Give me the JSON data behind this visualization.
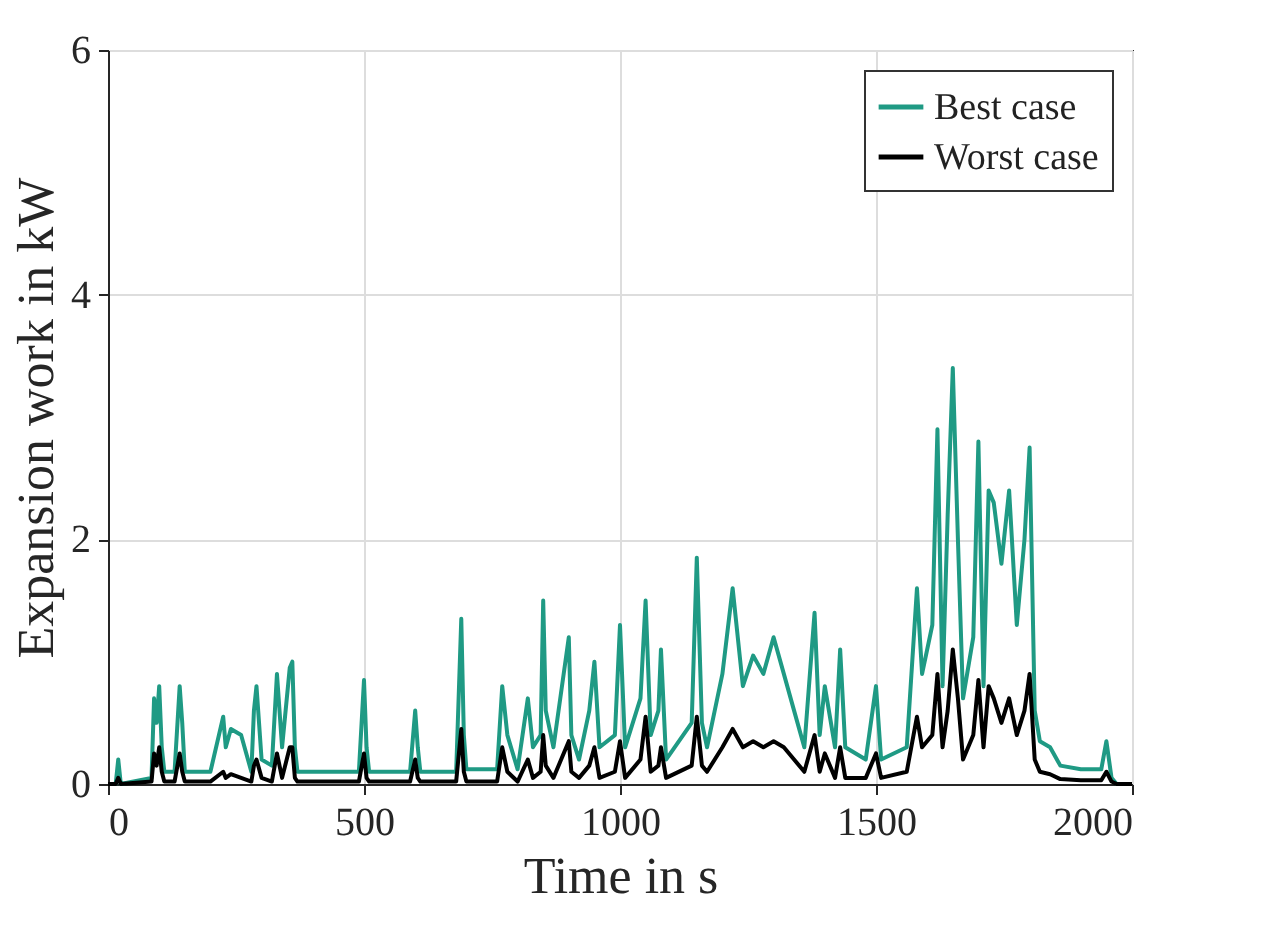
{
  "chart_data": {
    "type": "line",
    "xlabel": "Time in s",
    "ylabel": "Expansion work in kW",
    "x": [
      0,
      15,
      20,
      25,
      85,
      90,
      95,
      100,
      105,
      110,
      130,
      140,
      145,
      150,
      200,
      225,
      230,
      240,
      260,
      280,
      285,
      290,
      300,
      320,
      330,
      340,
      355,
      360,
      365,
      370,
      380,
      490,
      500,
      505,
      510,
      590,
      600,
      605,
      610,
      680,
      690,
      695,
      700,
      760,
      770,
      780,
      800,
      820,
      830,
      845,
      850,
      855,
      870,
      900,
      905,
      920,
      940,
      950,
      960,
      990,
      1000,
      1010,
      1040,
      1050,
      1060,
      1075,
      1080,
      1090,
      1140,
      1150,
      1160,
      1170,
      1200,
      1220,
      1240,
      1260,
      1280,
      1300,
      1320,
      1340,
      1360,
      1380,
      1390,
      1400,
      1420,
      1430,
      1440,
      1480,
      1500,
      1510,
      1560,
      1580,
      1590,
      1610,
      1620,
      1630,
      1640,
      1650,
      1660,
      1670,
      1690,
      1700,
      1710,
      1720,
      1730,
      1745,
      1760,
      1775,
      1790,
      1800,
      1810,
      1820,
      1840,
      1860,
      1900,
      1940,
      1950,
      1960,
      1970,
      2000
    ],
    "series": [
      {
        "name": "Best case",
        "color": "#1f9a84",
        "values": [
          0,
          0,
          0.2,
          0,
          0.05,
          0.7,
          0.5,
          0.8,
          0.3,
          0.1,
          0.1,
          0.8,
          0.5,
          0.1,
          0.1,
          0.55,
          0.3,
          0.45,
          0.4,
          0.1,
          0.6,
          0.8,
          0.2,
          0.15,
          0.9,
          0.3,
          0.95,
          1.0,
          0.3,
          0.1,
          0.1,
          0.1,
          0.85,
          0.3,
          0.1,
          0.1,
          0.6,
          0.3,
          0.1,
          0.1,
          1.35,
          0.4,
          0.12,
          0.12,
          0.8,
          0.4,
          0.12,
          0.7,
          0.3,
          0.4,
          1.5,
          0.6,
          0.3,
          1.2,
          0.4,
          0.2,
          0.6,
          1.0,
          0.3,
          0.4,
          1.3,
          0.3,
          0.7,
          1.5,
          0.4,
          0.6,
          1.1,
          0.2,
          0.5,
          1.85,
          0.5,
          0.3,
          0.9,
          1.6,
          0.8,
          1.05,
          0.9,
          1.2,
          0.9,
          0.6,
          0.3,
          1.4,
          0.4,
          0.8,
          0.3,
          1.1,
          0.3,
          0.2,
          0.8,
          0.2,
          0.3,
          1.6,
          0.9,
          1.3,
          2.9,
          0.8,
          2.2,
          3.4,
          2.0,
          0.7,
          1.2,
          2.8,
          0.8,
          2.4,
          2.3,
          1.8,
          2.4,
          1.3,
          2.0,
          2.75,
          0.6,
          0.35,
          0.3,
          0.15,
          0.12,
          0.12,
          0.35,
          0.05,
          0,
          0
        ]
      },
      {
        "name": "Worst case",
        "color": "#000000",
        "values": [
          0,
          0,
          0.05,
          0,
          0.02,
          0.25,
          0.15,
          0.3,
          0.1,
          0.02,
          0.02,
          0.25,
          0.1,
          0.02,
          0.02,
          0.1,
          0.05,
          0.08,
          0.05,
          0.02,
          0.15,
          0.2,
          0.05,
          0.02,
          0.25,
          0.05,
          0.3,
          0.3,
          0.05,
          0.02,
          0.02,
          0.02,
          0.25,
          0.05,
          0.02,
          0.02,
          0.2,
          0.05,
          0.02,
          0.02,
          0.45,
          0.1,
          0.02,
          0.02,
          0.3,
          0.1,
          0.02,
          0.2,
          0.05,
          0.1,
          0.4,
          0.15,
          0.05,
          0.35,
          0.1,
          0.05,
          0.15,
          0.3,
          0.05,
          0.1,
          0.35,
          0.05,
          0.2,
          0.55,
          0.1,
          0.15,
          0.3,
          0.05,
          0.15,
          0.55,
          0.15,
          0.1,
          0.3,
          0.45,
          0.3,
          0.35,
          0.3,
          0.35,
          0.3,
          0.2,
          0.1,
          0.4,
          0.1,
          0.25,
          0.05,
          0.3,
          0.05,
          0.05,
          0.25,
          0.05,
          0.1,
          0.55,
          0.3,
          0.4,
          0.9,
          0.3,
          0.6,
          1.1,
          0.7,
          0.2,
          0.4,
          0.85,
          0.3,
          0.8,
          0.7,
          0.5,
          0.7,
          0.4,
          0.6,
          0.9,
          0.2,
          0.1,
          0.08,
          0.04,
          0.03,
          0.03,
          0.1,
          0.02,
          0,
          0
        ]
      }
    ],
    "xlim": [
      0,
      2000
    ],
    "xticks": [
      0,
      500,
      1000,
      1500,
      2000
    ],
    "ylim": [
      0,
      6
    ],
    "yticks": [
      0,
      2,
      4,
      6
    ],
    "grid": true,
    "legend": "top right",
    "line_style": "solid",
    "marker": "none"
  }
}
